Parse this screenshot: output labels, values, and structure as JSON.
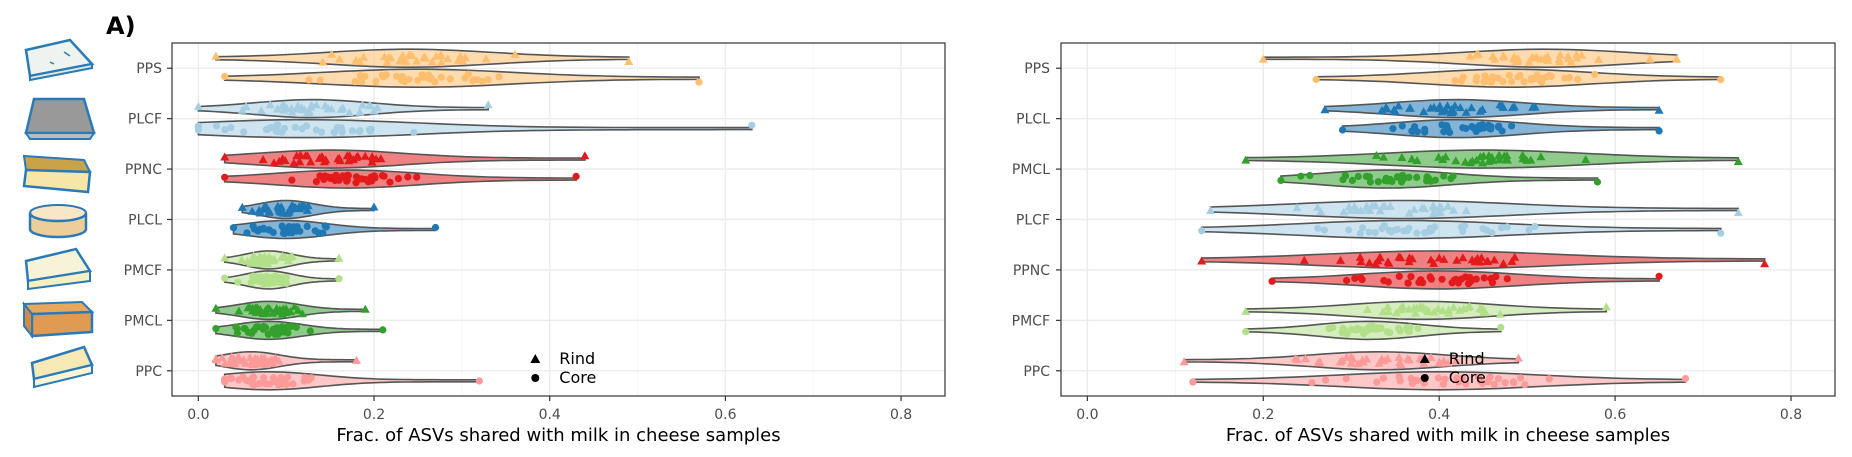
{
  "panel_label": "A)",
  "legend": {
    "rind": "Rind",
    "core": "Core"
  },
  "icons": [
    "blue-cheese-wedge-icon",
    "grey-pyramid-cheese-icon",
    "yellow-block-cheese-icon",
    "round-cheese-icon",
    "soft-cheese-wedge-icon",
    "orange-block-cheese-icon",
    "small-cheese-wedge-icon"
  ],
  "colors": {
    "PPS": "#FDBF6F",
    "PLCF": "#A6CEE3",
    "PPNC": "#E31A1C",
    "PLCL": "#1F78B4",
    "PMCF": "#B2DF8A",
    "PMCL": "#33A02C",
    "PPC": "#FB9A99",
    "line": "#555555"
  },
  "chart_data": [
    {
      "type": "violin",
      "xlabel": "Frac. of ASVs shared with milk in cheese samples",
      "xlim": [
        -0.03,
        0.85
      ],
      "xticks": [
        0.0,
        0.2,
        0.4,
        0.6,
        0.8
      ],
      "xtick_labels": [
        "0.0",
        "0.2",
        "0.4",
        "0.6",
        "0.8"
      ],
      "grid": true,
      "legend_position": "bottom-right",
      "categories": [
        "PPS",
        "PLCF",
        "PPNC",
        "PLCL",
        "PMCF",
        "PMCL",
        "PPC"
      ],
      "series": [
        {
          "name": "Rind",
          "groups": [
            {
              "category": "PPS",
              "min": 0.02,
              "max": 0.49,
              "median": 0.24
            },
            {
              "category": "PLCF",
              "min": 0.0,
              "max": 0.33,
              "median": 0.13
            },
            {
              "category": "PPNC",
              "min": 0.03,
              "max": 0.44,
              "median": 0.15
            },
            {
              "category": "PLCL",
              "min": 0.05,
              "max": 0.2,
              "median": 0.1
            },
            {
              "category": "PMCF",
              "min": 0.03,
              "max": 0.16,
              "median": 0.08
            },
            {
              "category": "PMCL",
              "min": 0.02,
              "max": 0.19,
              "median": 0.08
            },
            {
              "category": "PPC",
              "min": 0.02,
              "max": 0.18,
              "median": 0.06
            }
          ]
        },
        {
          "name": "Core",
          "groups": [
            {
              "category": "PPS",
              "min": 0.03,
              "max": 0.57,
              "median": 0.25
            },
            {
              "category": "PLCF",
              "min": 0.0,
              "max": 0.63,
              "median": 0.12
            },
            {
              "category": "PPNC",
              "min": 0.03,
              "max": 0.43,
              "median": 0.17
            },
            {
              "category": "PLCL",
              "min": 0.04,
              "max": 0.27,
              "median": 0.1
            },
            {
              "category": "PMCF",
              "min": 0.03,
              "max": 0.16,
              "median": 0.08
            },
            {
              "category": "PMCL",
              "min": 0.02,
              "max": 0.21,
              "median": 0.08
            },
            {
              "category": "PPC",
              "min": 0.03,
              "max": 0.32,
              "median": 0.08
            }
          ]
        }
      ]
    },
    {
      "type": "violin",
      "xlabel": "Frac. of ASVs shared with milk in cheese samples",
      "xlim": [
        -0.03,
        0.85
      ],
      "xticks": [
        0.0,
        0.2,
        0.4,
        0.6,
        0.8
      ],
      "xtick_labels": [
        "0.0",
        "0.2",
        "0.4",
        "0.6",
        "0.8"
      ],
      "grid": true,
      "legend_position": "bottom-right",
      "categories": [
        "PPS",
        "PLCL",
        "PMCL",
        "PLCF",
        "PPNC",
        "PMCF",
        "PPC"
      ],
      "series": [
        {
          "name": "Rind",
          "groups": [
            {
              "category": "PPS",
              "min": 0.2,
              "max": 0.67,
              "median": 0.52
            },
            {
              "category": "PLCL",
              "min": 0.27,
              "max": 0.65,
              "median": 0.42
            },
            {
              "category": "PMCL",
              "min": 0.18,
              "max": 0.74,
              "median": 0.45
            },
            {
              "category": "PLCF",
              "min": 0.14,
              "max": 0.74,
              "median": 0.36
            },
            {
              "category": "PPNC",
              "min": 0.13,
              "max": 0.77,
              "median": 0.4
            },
            {
              "category": "PMCF",
              "min": 0.18,
              "max": 0.59,
              "median": 0.38
            },
            {
              "category": "PPC",
              "min": 0.11,
              "max": 0.49,
              "median": 0.33
            }
          ]
        },
        {
          "name": "Core",
          "groups": [
            {
              "category": "PPS",
              "min": 0.26,
              "max": 0.72,
              "median": 0.48
            },
            {
              "category": "PLCL",
              "min": 0.29,
              "max": 0.65,
              "median": 0.42
            },
            {
              "category": "PMCL",
              "min": 0.22,
              "max": 0.58,
              "median": 0.34
            },
            {
              "category": "PLCF",
              "min": 0.13,
              "max": 0.72,
              "median": 0.36
            },
            {
              "category": "PPNC",
              "min": 0.21,
              "max": 0.65,
              "median": 0.4
            },
            {
              "category": "PMCF",
              "min": 0.18,
              "max": 0.47,
              "median": 0.32
            },
            {
              "category": "PPC",
              "min": 0.12,
              "max": 0.68,
              "median": 0.4
            }
          ]
        }
      ]
    }
  ]
}
